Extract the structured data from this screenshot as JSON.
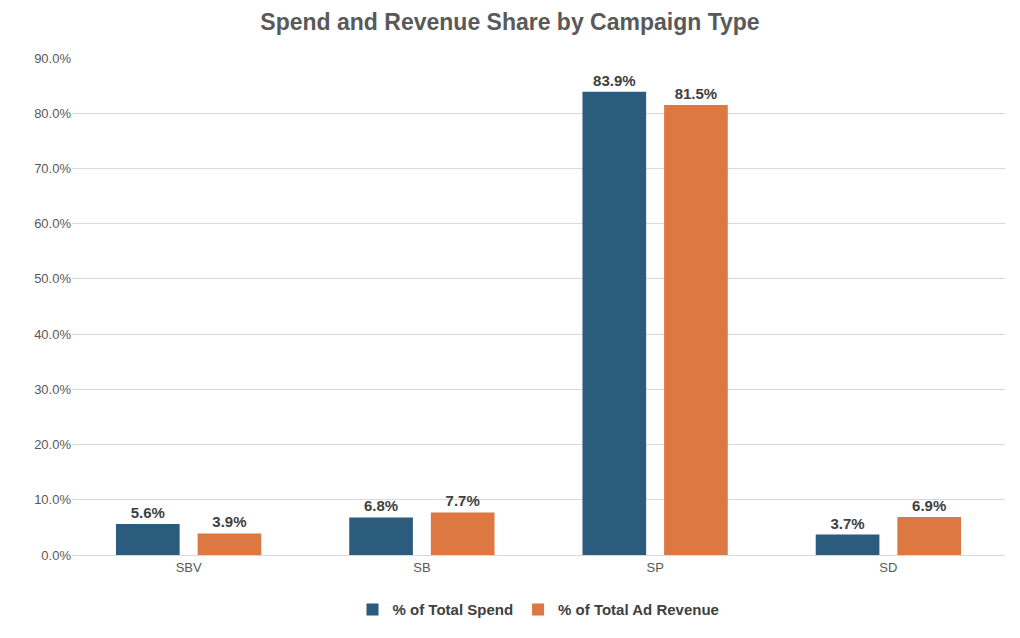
{
  "chart_data": {
    "type": "bar",
    "title": "Spend and Revenue Share by Campaign Type",
    "categories": [
      "SBV",
      "SB",
      "SP",
      "SD"
    ],
    "series": [
      {
        "name": "% of Total Spend",
        "color": "#2b5c7e",
        "values": [
          5.6,
          6.8,
          83.9,
          3.7
        ],
        "value_labels": [
          "5.6%",
          "6.8%",
          "83.9%",
          "3.7%"
        ]
      },
      {
        "name": "% of Total Ad Revenue",
        "color": "#dd7843",
        "values": [
          3.9,
          7.7,
          81.5,
          6.9
        ],
        "value_labels": [
          "3.9%",
          "7.7%",
          "81.5%",
          "6.9%"
        ]
      }
    ],
    "ylim": [
      0,
      90
    ],
    "yticks": [
      {
        "value": 0,
        "label": "0.0%"
      },
      {
        "value": 10,
        "label": "10.0%"
      },
      {
        "value": 20,
        "label": "20.0%"
      },
      {
        "value": 30,
        "label": "30.0%"
      },
      {
        "value": 40,
        "label": "40.0%"
      },
      {
        "value": 50,
        "label": "50.0%"
      },
      {
        "value": 60,
        "label": "60.0%"
      },
      {
        "value": 70,
        "label": "70.0%"
      },
      {
        "value": 80,
        "label": "80.0%"
      },
      {
        "value": 90,
        "label": "90.0%"
      }
    ],
    "grid": true,
    "legend": "bottom",
    "data_labels": true
  }
}
